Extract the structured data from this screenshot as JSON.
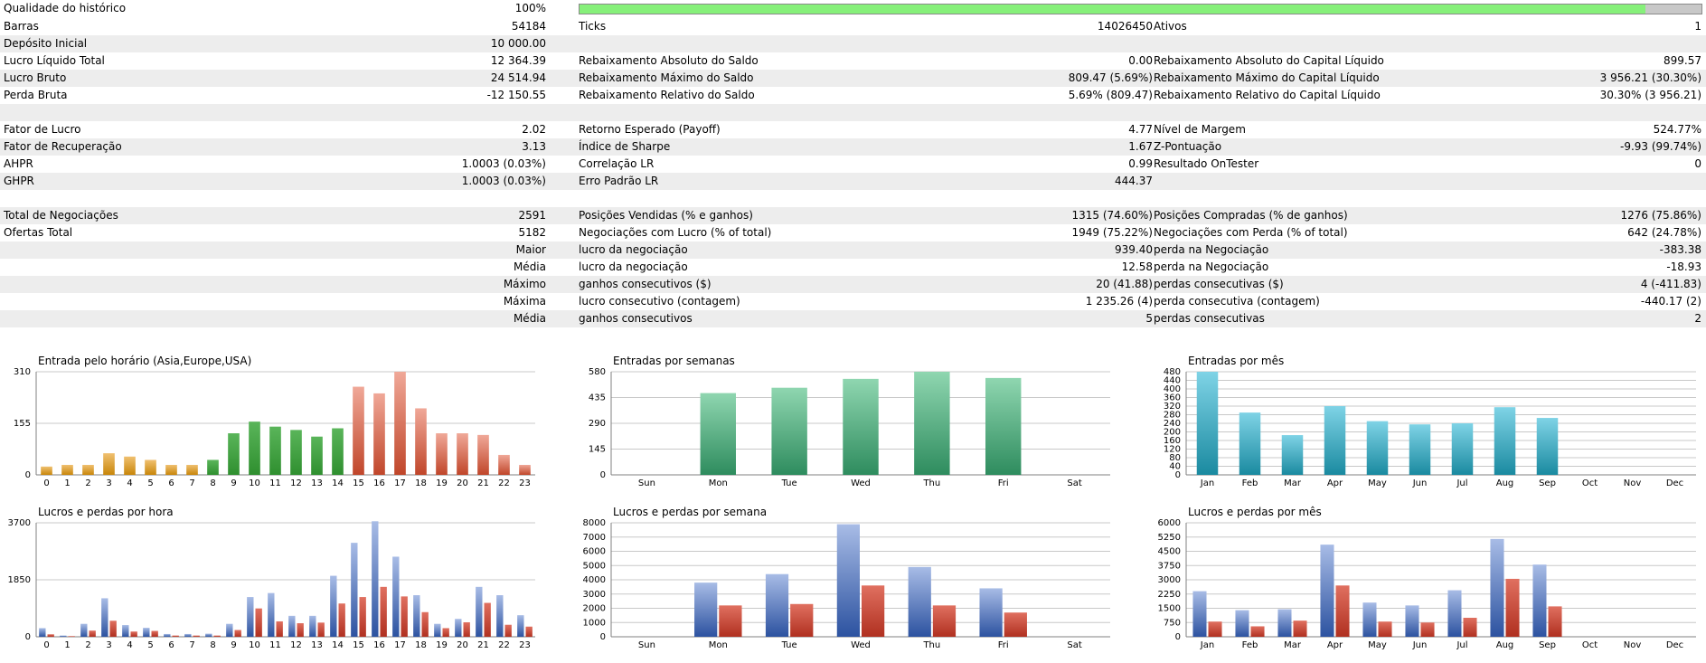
{
  "summary": {
    "history_quality": {
      "label": "Qualidade do histórico",
      "value": "100%",
      "progress": 0.95
    },
    "rows": [
      {
        "shade": false,
        "cols": [
          [
            "Barras",
            "54184"
          ],
          [
            "Ticks",
            "14026450"
          ],
          [
            "Ativos",
            "1"
          ]
        ]
      },
      {
        "shade": true,
        "cols": [
          [
            "Depósito Inicial",
            "10 000.00"
          ],
          [
            "",
            ""
          ],
          [
            "",
            ""
          ]
        ]
      },
      {
        "shade": false,
        "cols": [
          [
            "Lucro Líquido Total",
            "12 364.39"
          ],
          [
            "Rebaixamento Absoluto do Saldo",
            "0.00"
          ],
          [
            "Rebaixamento Absoluto do Capital Líquido",
            "899.57"
          ]
        ]
      },
      {
        "shade": true,
        "cols": [
          [
            "Lucro Bruto",
            "24 514.94"
          ],
          [
            "Rebaixamento Máximo do Saldo",
            "809.47 (5.69%)"
          ],
          [
            "Rebaixamento Máximo do Capital Líquido",
            "3 956.21 (30.30%)"
          ]
        ]
      },
      {
        "shade": false,
        "cols": [
          [
            "Perda Bruta",
            "-12 150.55"
          ],
          [
            "Rebaixamento Relativo do Saldo",
            "5.69% (809.47)"
          ],
          [
            "Rebaixamento Relativo do Capital Líquido",
            "30.30% (3 956.21)"
          ]
        ]
      },
      {
        "shade": true,
        "cols": [
          [
            "",
            ""
          ],
          [
            "",
            ""
          ],
          [
            "",
            ""
          ]
        ]
      },
      {
        "shade": false,
        "cols": [
          [
            "Fator de Lucro",
            "2.02"
          ],
          [
            "Retorno Esperado (Payoff)",
            "4.77"
          ],
          [
            "Nível de Margem",
            "524.77%"
          ]
        ]
      },
      {
        "shade": true,
        "cols": [
          [
            "Fator de Recuperação",
            "3.13"
          ],
          [
            "Índice de Sharpe",
            "1.67"
          ],
          [
            "Z-Pontuação",
            "-9.93 (99.74%)"
          ]
        ]
      },
      {
        "shade": false,
        "cols": [
          [
            "AHPR",
            "1.0003 (0.03%)"
          ],
          [
            "Correlação LR",
            "0.99"
          ],
          [
            "Resultado OnTester",
            "0"
          ]
        ]
      },
      {
        "shade": true,
        "cols": [
          [
            "GHPR",
            "1.0003 (0.03%)"
          ],
          [
            "Erro Padrão LR",
            "444.37"
          ],
          [
            "",
            ""
          ]
        ]
      },
      {
        "shade": false,
        "cols": [
          [
            "",
            ""
          ],
          [
            "",
            ""
          ],
          [
            "",
            ""
          ]
        ]
      },
      {
        "shade": true,
        "cols": [
          [
            "Total de Negociações",
            "2591"
          ],
          [
            "Posições Vendidas (% e ganhos)",
            "1315 (74.60%)"
          ],
          [
            "Posições Compradas (% de ganhos)",
            "1276 (75.86%)"
          ]
        ]
      },
      {
        "shade": false,
        "cols": [
          [
            "Ofertas Total",
            "5182"
          ],
          [
            "Negociações com Lucro (% of total)",
            "1949 (75.22%)"
          ],
          [
            "Negociações com Perda (% of total)",
            "642 (24.78%)"
          ]
        ]
      },
      {
        "shade": true,
        "right1": "Maior",
        "cols": [
          [
            "",
            ""
          ],
          [
            "lucro da negociação",
            "939.40"
          ],
          [
            "perda na Negociação",
            "-383.38"
          ]
        ]
      },
      {
        "shade": false,
        "right1": "Média",
        "cols": [
          [
            "",
            ""
          ],
          [
            "lucro da negociação",
            "12.58"
          ],
          [
            "perda na Negociação",
            "-18.93"
          ]
        ]
      },
      {
        "shade": true,
        "right1": "Máximo",
        "cols": [
          [
            "",
            ""
          ],
          [
            "ganhos consecutivos ($)",
            "20 (41.88)"
          ],
          [
            "perdas consecutivas ($)",
            "4 (-411.83)"
          ]
        ]
      },
      {
        "shade": false,
        "right1": "Máxima",
        "cols": [
          [
            "",
            ""
          ],
          [
            "lucro consecutivo (contagem)",
            "1 235.26 (4)"
          ],
          [
            "perda consecutiva (contagem)",
            "-440.17 (2)"
          ]
        ]
      },
      {
        "shade": true,
        "right1": "Média",
        "cols": [
          [
            "",
            ""
          ],
          [
            "ganhos consecutivos",
            "5"
          ],
          [
            "perdas consecutivas",
            "2"
          ]
        ]
      },
      {
        "shade": false,
        "cols": [
          [
            "",
            ""
          ],
          [
            "",
            ""
          ],
          [
            "",
            ""
          ]
        ]
      }
    ]
  },
  "colors": {
    "green_bar": "#2f8f2f",
    "orange_bar": "#c8860a",
    "red_bar": "#c0462a",
    "teal_light": "#8fd6b0",
    "teal_dark": "#2e8c5e",
    "cyan": "#1a8aa0",
    "blue": "#2c52a0",
    "red": "#b03020",
    "progress": "#86f07a"
  },
  "chart_data": [
    {
      "id": "entries-by-hour",
      "type": "bar",
      "title": "Entrada pelo horário (Asia,Europe,USA)",
      "categories": [
        "0",
        "1",
        "2",
        "3",
        "4",
        "5",
        "6",
        "7",
        "8",
        "9",
        "10",
        "11",
        "12",
        "13",
        "14",
        "15",
        "16",
        "17",
        "18",
        "19",
        "20",
        "21",
        "22",
        "23"
      ],
      "values": [
        25,
        30,
        30,
        65,
        55,
        45,
        30,
        30,
        45,
        125,
        160,
        145,
        135,
        115,
        140,
        265,
        245,
        310,
        200,
        125,
        125,
        120,
        60,
        30
      ],
      "bar_colors": [
        "orange",
        "orange",
        "orange",
        "orange",
        "orange",
        "orange",
        "orange",
        "orange",
        "green",
        "green",
        "green",
        "green",
        "green",
        "green",
        "green",
        "red",
        "red",
        "red",
        "red",
        "red",
        "red",
        "red",
        "red",
        "red"
      ],
      "yticks": [
        "0",
        "155",
        "310"
      ],
      "ylim": [
        0,
        310
      ]
    },
    {
      "id": "entries-by-week",
      "type": "bar",
      "title": "Entradas por semanas",
      "categories": [
        "Sun",
        "Mon",
        "Tue",
        "Wed",
        "Thu",
        "Fri",
        "Sat"
      ],
      "values": [
        0,
        460,
        490,
        540,
        580,
        545,
        0
      ],
      "yticks": [
        "0",
        "145",
        "290",
        "435",
        "580"
      ],
      "ylim": [
        0,
        580
      ]
    },
    {
      "id": "entries-by-month",
      "type": "bar",
      "title": "Entradas por mês",
      "categories": [
        "Jan",
        "Feb",
        "Mar",
        "Apr",
        "May",
        "Jun",
        "Jul",
        "Aug",
        "Sep",
        "Oct",
        "Nov",
        "Dec"
      ],
      "values": [
        480,
        290,
        185,
        320,
        250,
        235,
        240,
        315,
        265,
        0,
        0,
        0
      ],
      "yticks": [
        "0",
        "40",
        "80",
        "120",
        "160",
        "200",
        "240",
        "280",
        "320",
        "360",
        "400",
        "440",
        "480"
      ],
      "ylim": [
        0,
        480
      ]
    },
    {
      "id": "pl-by-hour",
      "type": "bar",
      "title": "Lucros e perdas por hora",
      "categories": [
        "0",
        "1",
        "2",
        "3",
        "4",
        "5",
        "6",
        "7",
        "8",
        "9",
        "10",
        "11",
        "12",
        "13",
        "14",
        "15",
        "16",
        "17",
        "18",
        "19",
        "20",
        "21",
        "22",
        "23"
      ],
      "series": [
        {
          "values": [
            280,
            40,
            420,
            1250,
            380,
            290,
            90,
            90,
            100,
            420,
            1290,
            1420,
            680,
            680,
            1980,
            3050,
            3750,
            2600,
            1350,
            420,
            580,
            1620,
            1350,
            700
          ]
        },
        {
          "values": [
            80,
            20,
            200,
            520,
            170,
            190,
            40,
            40,
            40,
            220,
            920,
            500,
            440,
            460,
            1080,
            1290,
            1620,
            1310,
            800,
            280,
            470,
            1100,
            390,
            330
          ]
        }
      ],
      "yticks": [
        "0",
        "1850",
        "3700"
      ],
      "ylim": [
        0,
        3700
      ]
    },
    {
      "id": "pl-by-week",
      "type": "bar",
      "title": "Lucros e perdas por semana",
      "categories": [
        "Sun",
        "Mon",
        "Tue",
        "Wed",
        "Thu",
        "Fri",
        "Sat"
      ],
      "series": [
        {
          "values": [
            0,
            3800,
            4400,
            7900,
            4900,
            3400,
            0
          ]
        },
        {
          "values": [
            0,
            2200,
            2300,
            3600,
            2200,
            1700,
            0
          ]
        }
      ],
      "yticks": [
        "0",
        "1000",
        "2000",
        "3000",
        "4000",
        "5000",
        "6000",
        "7000",
        "8000"
      ],
      "ylim": [
        0,
        8000
      ]
    },
    {
      "id": "pl-by-month",
      "type": "bar",
      "title": "Lucros e perdas por mês",
      "categories": [
        "Jan",
        "Feb",
        "Mar",
        "Apr",
        "May",
        "Jun",
        "Jul",
        "Aug",
        "Sep",
        "Oct",
        "Nov",
        "Dec"
      ],
      "series": [
        {
          "values": [
            2400,
            1400,
            1450,
            4850,
            1800,
            1650,
            2450,
            5150,
            3800,
            0,
            0,
            0
          ]
        },
        {
          "values": [
            800,
            550,
            850,
            2700,
            800,
            750,
            1000,
            3050,
            1600,
            0,
            0,
            0
          ]
        }
      ],
      "yticks": [
        "0",
        "750",
        "1500",
        "2250",
        "3000",
        "3750",
        "4500",
        "5250",
        "6000"
      ],
      "ylim": [
        0,
        6000
      ]
    }
  ]
}
